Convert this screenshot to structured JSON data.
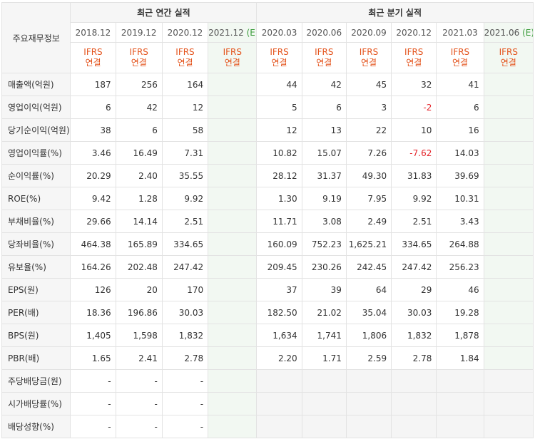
{
  "corner_label": "주요재무정보",
  "groups": {
    "annual": "최근 연간 실적",
    "quarterly": "최근 분기 실적"
  },
  "annual_periods": [
    {
      "label": "2018.12",
      "est": ""
    },
    {
      "label": "2019.12",
      "est": ""
    },
    {
      "label": "2020.12",
      "est": ""
    },
    {
      "label": "2021.12",
      "est": "(E)"
    }
  ],
  "quarterly_periods": [
    {
      "label": "2020.03",
      "est": ""
    },
    {
      "label": "2020.06",
      "est": ""
    },
    {
      "label": "2020.09",
      "est": ""
    },
    {
      "label": "2020.12",
      "est": ""
    },
    {
      "label": "2021.03",
      "est": ""
    },
    {
      "label": "2021.06",
      "est": "(E)"
    }
  ],
  "ifrs": {
    "line1": "IFRS",
    "line2": "연결"
  },
  "rows": [
    {
      "label": "매출액(억원)",
      "values": [
        "187",
        "256",
        "164",
        "",
        "44",
        "42",
        "45",
        "32",
        "41",
        ""
      ]
    },
    {
      "label": "영업이익(억원)",
      "values": [
        "6",
        "42",
        "12",
        "",
        "5",
        "6",
        "3",
        "-2",
        "6",
        ""
      ]
    },
    {
      "label": "당기순이익(억원)",
      "values": [
        "38",
        "6",
        "58",
        "",
        "12",
        "13",
        "22",
        "10",
        "16",
        ""
      ]
    },
    {
      "label": "영업이익률(%)",
      "values": [
        "3.46",
        "16.49",
        "7.31",
        "",
        "10.82",
        "15.07",
        "7.26",
        "-7.62",
        "14.03",
        ""
      ]
    },
    {
      "label": "순이익률(%)",
      "values": [
        "20.29",
        "2.40",
        "35.55",
        "",
        "28.12",
        "31.37",
        "49.30",
        "31.83",
        "39.69",
        ""
      ]
    },
    {
      "label": "ROE(%)",
      "values": [
        "9.42",
        "1.28",
        "9.92",
        "",
        "1.30",
        "9.19",
        "7.95",
        "9.92",
        "10.31",
        ""
      ]
    },
    {
      "label": "부채비율(%)",
      "values": [
        "29.66",
        "14.14",
        "2.51",
        "",
        "11.71",
        "3.08",
        "2.49",
        "2.51",
        "3.43",
        ""
      ]
    },
    {
      "label": "당좌비율(%)",
      "values": [
        "464.38",
        "165.89",
        "334.65",
        "",
        "160.09",
        "752.23",
        "1,625.21",
        "334.65",
        "264.88",
        ""
      ]
    },
    {
      "label": "유보율(%)",
      "values": [
        "164.26",
        "202.48",
        "247.42",
        "",
        "209.45",
        "230.26",
        "242.45",
        "247.42",
        "256.23",
        ""
      ]
    },
    {
      "label": "EPS(원)",
      "values": [
        "126",
        "20",
        "170",
        "",
        "37",
        "39",
        "64",
        "29",
        "46",
        ""
      ]
    },
    {
      "label": "PER(배)",
      "values": [
        "18.36",
        "196.86",
        "30.03",
        "",
        "182.50",
        "21.02",
        "35.04",
        "30.03",
        "19.28",
        ""
      ]
    },
    {
      "label": "BPS(원)",
      "values": [
        "1,405",
        "1,598",
        "1,832",
        "",
        "1,634",
        "1,741",
        "1,806",
        "1,832",
        "1,878",
        ""
      ]
    },
    {
      "label": "PBR(배)",
      "values": [
        "1.65",
        "2.41",
        "2.78",
        "",
        "2.20",
        "1.71",
        "2.59",
        "2.78",
        "1.84",
        ""
      ]
    },
    {
      "label": "주당배당금(원)",
      "values": [
        "-",
        "-",
        "-",
        "",
        "",
        "",
        "",
        "",
        "",
        ""
      ]
    },
    {
      "label": "시가배당률(%)",
      "values": [
        "-",
        "-",
        "-",
        "",
        "",
        "",
        "",
        "",
        "",
        ""
      ]
    },
    {
      "label": "배당성향(%)",
      "values": [
        "-",
        "-",
        "-",
        "",
        "",
        "",
        "",
        "",
        "",
        ""
      ]
    }
  ],
  "colors": {
    "ifrs_text": "#e4531c",
    "estimate_mark": "#3a9b3a",
    "negative_text": "#e4262c",
    "estimate_bg": "#f2f8f2",
    "header_bg": "#f6f6f6"
  }
}
